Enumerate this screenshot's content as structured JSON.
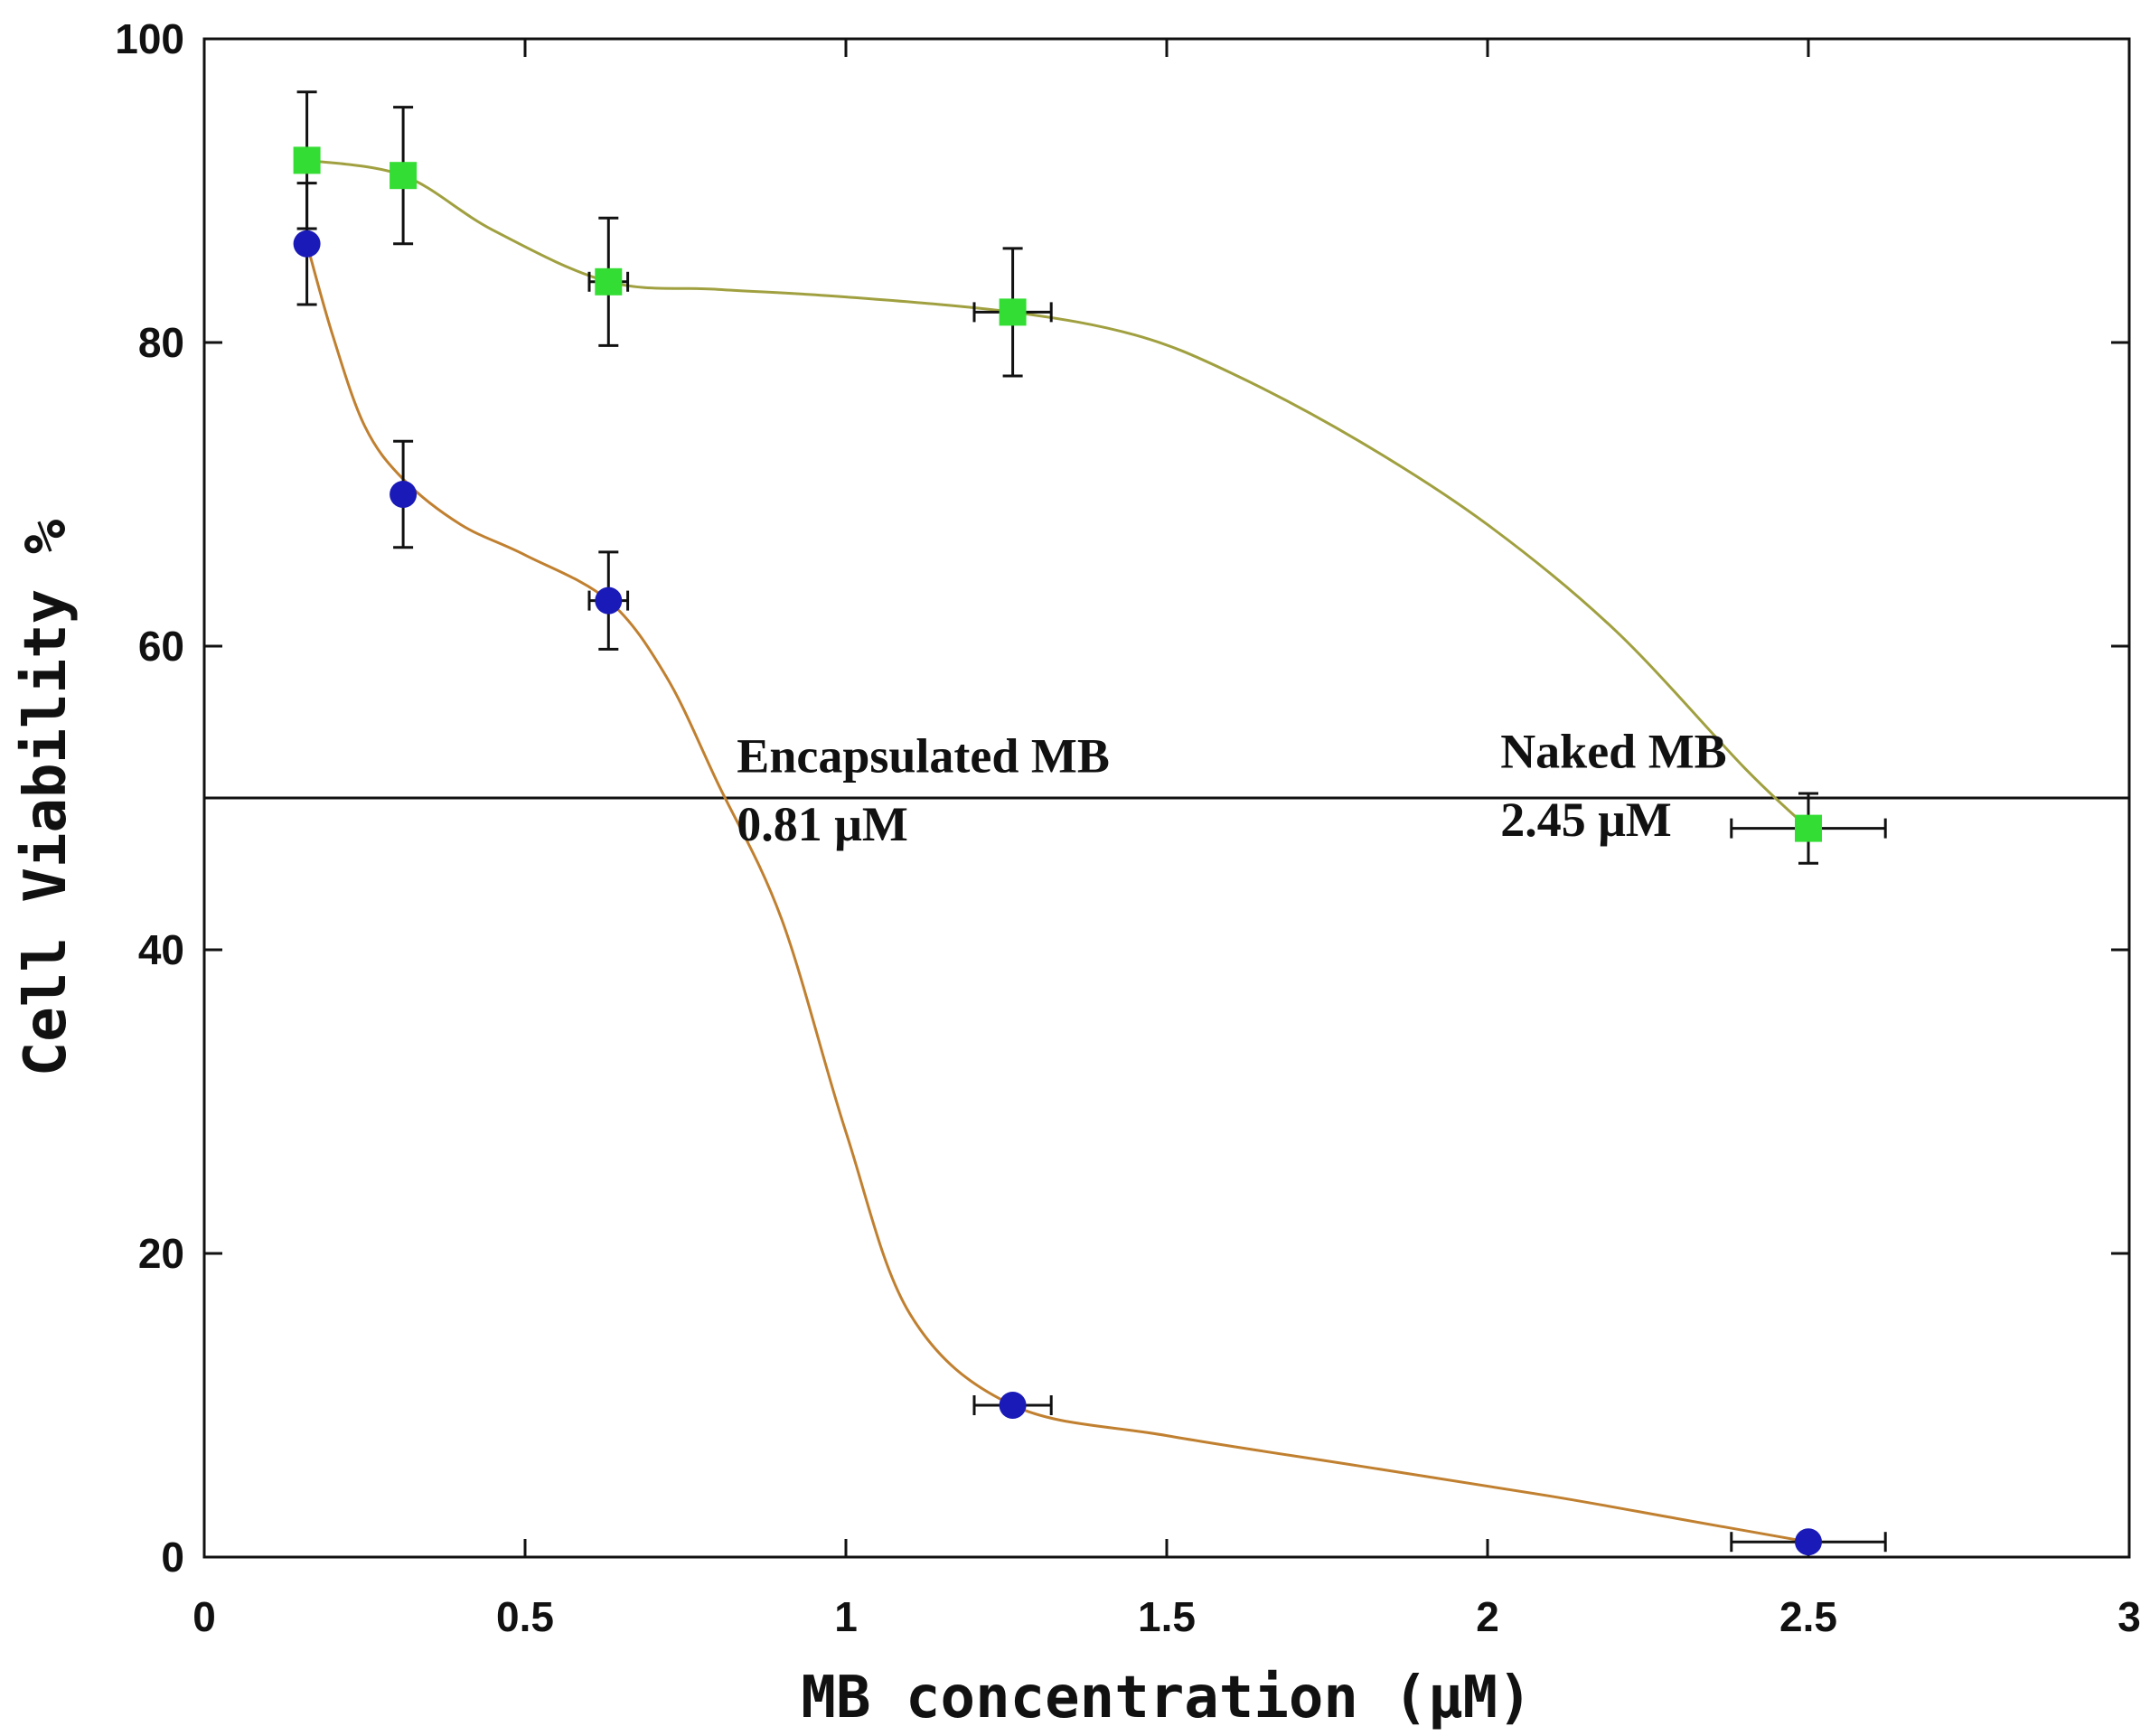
{
  "chart_data": {
    "type": "scatter",
    "xlabel": "MB concentration (μM)",
    "ylabel": "Cell Viability %",
    "xlim": [
      0,
      3
    ],
    "ylim": [
      0,
      100
    ],
    "x_ticks": [
      0,
      0.5,
      1,
      1.5,
      2,
      2.5,
      3
    ],
    "x_tick_labels": [
      "0",
      "0.5",
      "1",
      "1.5",
      "2",
      "2.5",
      "3"
    ],
    "y_ticks": [
      0,
      20,
      40,
      60,
      80,
      100
    ],
    "y_tick_labels": [
      "0",
      "20",
      "40",
      "60",
      "80",
      "100"
    ],
    "reference_line_y": 50,
    "series": [
      {
        "name": "Naked MB",
        "marker": "square",
        "marker_color": "#33dd33",
        "line_color": "#a0a040",
        "x": [
          0.16,
          0.31,
          0.63,
          1.26,
          2.5
        ],
        "y": [
          92,
          91,
          84,
          82,
          48
        ],
        "y_err": [
          4.5,
          4.5,
          4.2,
          4.2,
          2.3
        ],
        "x_err": [
          0,
          0,
          0.03,
          0.06,
          0.12
        ],
        "fit_curve": [
          [
            0.16,
            92
          ],
          [
            0.31,
            91
          ],
          [
            0.45,
            87.4
          ],
          [
            0.63,
            84
          ],
          [
            0.8,
            83.5
          ],
          [
            1.0,
            83
          ],
          [
            1.26,
            82
          ],
          [
            1.45,
            80.5
          ],
          [
            1.6,
            78
          ],
          [
            1.8,
            73.5
          ],
          [
            2.0,
            68
          ],
          [
            2.2,
            61
          ],
          [
            2.4,
            52
          ],
          [
            2.5,
            48
          ]
        ]
      },
      {
        "name": "Encapsulated MB",
        "marker": "circle",
        "marker_color": "#1a1ab8",
        "line_color": "#c08030",
        "x": [
          0.16,
          0.31,
          0.63,
          1.26,
          2.5
        ],
        "y": [
          86.5,
          70,
          63,
          10,
          1
        ],
        "y_err": [
          4,
          3.5,
          3.2,
          0,
          0
        ],
        "x_err": [
          0,
          0,
          0.03,
          0.06,
          0.12
        ],
        "fit_curve": [
          [
            0.16,
            86.5
          ],
          [
            0.2,
            80.5
          ],
          [
            0.25,
            74.5
          ],
          [
            0.31,
            71
          ],
          [
            0.4,
            68
          ],
          [
            0.5,
            66
          ],
          [
            0.63,
            63
          ],
          [
            0.72,
            58
          ],
          [
            0.8,
            51
          ],
          [
            0.9,
            42
          ],
          [
            1.0,
            28
          ],
          [
            1.1,
            16
          ],
          [
            1.26,
            10
          ],
          [
            1.5,
            8
          ],
          [
            1.8,
            6
          ],
          [
            2.1,
            4
          ],
          [
            2.3,
            2.5
          ],
          [
            2.5,
            1
          ]
        ]
      }
    ],
    "annotations": [
      {
        "id": "enc_name",
        "text": "Encapsulated MB",
        "x": 0.83,
        "y": 51.7
      },
      {
        "id": "enc_value",
        "text": "0.81 μM",
        "x": 0.83,
        "y": 47.2
      },
      {
        "id": "naked_name",
        "text": "Naked MB",
        "x": 2.02,
        "y": 52.0
      },
      {
        "id": "naked_value",
        "text": "2.45 μM",
        "x": 2.02,
        "y": 47.5
      }
    ]
  }
}
